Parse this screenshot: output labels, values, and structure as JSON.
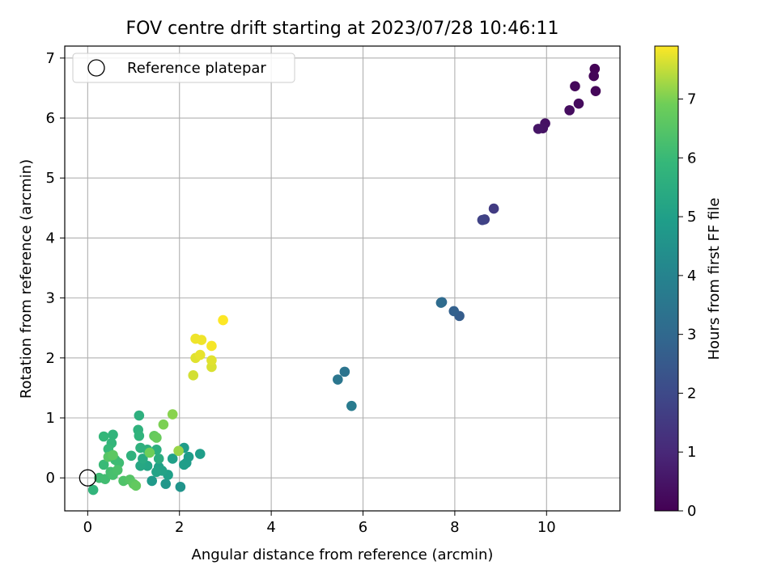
{
  "chart_data": {
    "type": "scatter",
    "title": "FOV centre drift starting at 2023/07/28 10:46:11",
    "xlabel": "Angular distance from reference (arcmin)",
    "ylabel": "Rotation from reference (arcmin)",
    "xlim": [
      -0.5,
      11.6
    ],
    "ylim": [
      -0.55,
      7.2
    ],
    "xticks": [
      0,
      2,
      4,
      6,
      8,
      10
    ],
    "yticks": [
      0,
      1,
      2,
      3,
      4,
      5,
      6,
      7
    ],
    "grid": true,
    "legend": {
      "placement": "upper-left",
      "entries": [
        "Reference platepar"
      ]
    },
    "reference_point": {
      "x": 0,
      "y": 0,
      "marker": "open-circle",
      "color": "#000000"
    },
    "colorbar": {
      "label": "Hours from first FF file",
      "colormap": "viridis",
      "range": [
        0,
        7.9
      ],
      "ticks": [
        0,
        1,
        2,
        3,
        4,
        5,
        6,
        7
      ]
    },
    "points": [
      {
        "x": 11.05,
        "y": 6.82,
        "c": 0.05
      },
      {
        "x": 11.03,
        "y": 6.7,
        "c": 0.1
      },
      {
        "x": 11.07,
        "y": 6.45,
        "c": 0.15
      },
      {
        "x": 10.62,
        "y": 6.53,
        "c": 0.2
      },
      {
        "x": 10.7,
        "y": 6.24,
        "c": 0.25
      },
      {
        "x": 10.5,
        "y": 6.13,
        "c": 0.3
      },
      {
        "x": 9.97,
        "y": 5.91,
        "c": 0.4
      },
      {
        "x": 9.92,
        "y": 5.83,
        "c": 0.45
      },
      {
        "x": 9.82,
        "y": 5.82,
        "c": 0.5
      },
      {
        "x": 8.85,
        "y": 4.49,
        "c": 1.55
      },
      {
        "x": 8.65,
        "y": 4.31,
        "c": 1.7
      },
      {
        "x": 8.6,
        "y": 4.3,
        "c": 1.8
      },
      {
        "x": 8.1,
        "y": 2.7,
        "c": 2.6
      },
      {
        "x": 7.98,
        "y": 2.78,
        "c": 2.75
      },
      {
        "x": 7.72,
        "y": 2.93,
        "c": 3.0
      },
      {
        "x": 7.7,
        "y": 2.92,
        "c": 3.1
      },
      {
        "x": 5.6,
        "y": 1.77,
        "c": 3.4
      },
      {
        "x": 5.45,
        "y": 1.64,
        "c": 3.5
      },
      {
        "x": 5.75,
        "y": 1.2,
        "c": 3.7
      },
      {
        "x": 2.02,
        "y": -0.15,
        "c": 4.6
      },
      {
        "x": 1.7,
        "y": -0.1,
        "c": 4.7
      },
      {
        "x": 1.4,
        "y": -0.05,
        "c": 4.8
      },
      {
        "x": 2.1,
        "y": 0.5,
        "c": 4.9
      },
      {
        "x": 2.15,
        "y": 0.25,
        "c": 4.85
      },
      {
        "x": 2.1,
        "y": 0.22,
        "c": 4.95
      },
      {
        "x": 2.2,
        "y": 0.35,
        "c": 4.9
      },
      {
        "x": 2.45,
        "y": 0.4,
        "c": 4.95
      },
      {
        "x": 1.75,
        "y": 0.05,
        "c": 5.0
      },
      {
        "x": 1.85,
        "y": 0.32,
        "c": 5.0
      },
      {
        "x": 1.55,
        "y": 0.18,
        "c": 5.05
      },
      {
        "x": 1.62,
        "y": 0.12,
        "c": 5.1
      },
      {
        "x": 1.5,
        "y": 0.1,
        "c": 5.15
      },
      {
        "x": 1.3,
        "y": 0.2,
        "c": 5.2
      },
      {
        "x": 1.15,
        "y": 0.2,
        "c": 5.3
      },
      {
        "x": 1.2,
        "y": 0.32,
        "c": 5.4
      },
      {
        "x": 1.55,
        "y": 0.32,
        "c": 5.5
      },
      {
        "x": 1.5,
        "y": 0.47,
        "c": 5.55
      },
      {
        "x": 1.3,
        "y": 0.47,
        "c": 5.6
      },
      {
        "x": 1.15,
        "y": 0.5,
        "c": 5.65
      },
      {
        "x": 0.95,
        "y": 0.37,
        "c": 5.7
      },
      {
        "x": 0.12,
        "y": -0.2,
        "c": 5.8
      },
      {
        "x": 1.12,
        "y": 1.04,
        "c": 5.6
      },
      {
        "x": 1.1,
        "y": 0.8,
        "c": 5.7
      },
      {
        "x": 1.12,
        "y": 0.7,
        "c": 5.75
      },
      {
        "x": 0.55,
        "y": 0.72,
        "c": 5.8
      },
      {
        "x": 0.52,
        "y": 0.58,
        "c": 5.85
      },
      {
        "x": 0.35,
        "y": 0.69,
        "c": 5.9
      },
      {
        "x": 0.45,
        "y": 0.48,
        "c": 5.95
      },
      {
        "x": 0.35,
        "y": 0.22,
        "c": 6.0
      },
      {
        "x": 0.6,
        "y": 0.3,
        "c": 6.05
      },
      {
        "x": 0.68,
        "y": 0.25,
        "c": 6.1
      },
      {
        "x": 0.25,
        "y": 0.0,
        "c": 6.1
      },
      {
        "x": 0.38,
        "y": -0.02,
        "c": 6.15
      },
      {
        "x": 0.5,
        "y": 0.1,
        "c": 6.2
      },
      {
        "x": 0.55,
        "y": 0.05,
        "c": 6.25
      },
      {
        "x": 0.65,
        "y": 0.13,
        "c": 6.3
      },
      {
        "x": 0.78,
        "y": -0.05,
        "c": 6.4
      },
      {
        "x": 0.92,
        "y": -0.03,
        "c": 6.5
      },
      {
        "x": 1.0,
        "y": -0.1,
        "c": 6.6
      },
      {
        "x": 1.05,
        "y": -0.13,
        "c": 6.7
      },
      {
        "x": 0.45,
        "y": 0.35,
        "c": 6.5
      },
      {
        "x": 0.55,
        "y": 0.38,
        "c": 6.6
      },
      {
        "x": 1.45,
        "y": 0.7,
        "c": 6.7
      },
      {
        "x": 1.5,
        "y": 0.67,
        "c": 6.8
      },
      {
        "x": 1.35,
        "y": 0.42,
        "c": 6.9
      },
      {
        "x": 1.65,
        "y": 0.89,
        "c": 7.0
      },
      {
        "x": 1.85,
        "y": 1.06,
        "c": 7.1
      },
      {
        "x": 1.98,
        "y": 0.45,
        "c": 7.2
      },
      {
        "x": 2.3,
        "y": 1.71,
        "c": 7.6
      },
      {
        "x": 2.7,
        "y": 1.85,
        "c": 7.65
      },
      {
        "x": 2.7,
        "y": 1.96,
        "c": 7.7
      },
      {
        "x": 2.35,
        "y": 2.0,
        "c": 7.7
      },
      {
        "x": 2.45,
        "y": 2.05,
        "c": 7.75
      },
      {
        "x": 2.35,
        "y": 2.32,
        "c": 7.8
      },
      {
        "x": 2.48,
        "y": 2.3,
        "c": 7.8
      },
      {
        "x": 2.7,
        "y": 2.2,
        "c": 7.85
      },
      {
        "x": 2.95,
        "y": 2.63,
        "c": 7.9
      }
    ]
  }
}
